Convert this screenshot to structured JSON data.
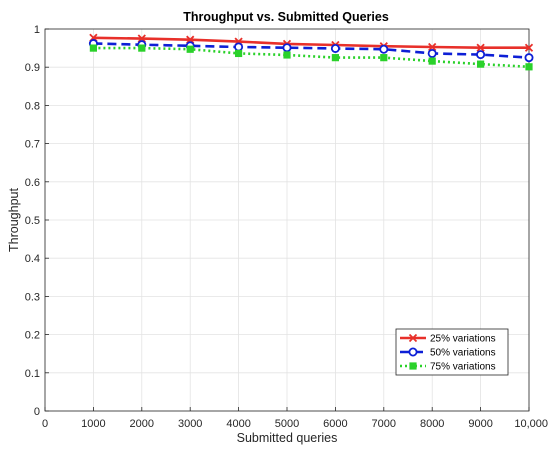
{
  "chart_data": {
    "type": "line",
    "title": "Throughput vs. Submitted Queries",
    "xlabel": "Submitted queries",
    "ylabel": "Throughput",
    "x": [
      1000,
      2000,
      3000,
      4000,
      5000,
      6000,
      7000,
      8000,
      9000,
      10000
    ],
    "xlim": [
      0,
      10000
    ],
    "ylim": [
      0,
      1
    ],
    "xticks": [
      0,
      1000,
      2000,
      3000,
      4000,
      5000,
      6000,
      7000,
      8000,
      9000,
      10000
    ],
    "xtick_labels": [
      "0",
      "1000",
      "2000",
      "3000",
      "4000",
      "5000",
      "6000",
      "7000",
      "8000",
      "9000",
      "10,000"
    ],
    "yticks": [
      0,
      0.1,
      0.2,
      0.3,
      0.4,
      0.5,
      0.6,
      0.7,
      0.8,
      0.9,
      1
    ],
    "ytick_labels": [
      "0",
      "0.1",
      "0.2",
      "0.3",
      "0.4",
      "0.5",
      "0.6",
      "0.7",
      "0.8",
      "0.9",
      "1"
    ],
    "grid": true,
    "legend_position": "bottom-right",
    "series": [
      {
        "name": "25% variations",
        "values": [
          0.977,
          0.975,
          0.972,
          0.967,
          0.961,
          0.958,
          0.955,
          0.953,
          0.951,
          0.951
        ],
        "color": "#e8302a",
        "line_style": "solid",
        "marker": "x"
      },
      {
        "name": "50% variations",
        "values": [
          0.962,
          0.959,
          0.956,
          0.953,
          0.951,
          0.949,
          0.947,
          0.936,
          0.933,
          0.925
        ],
        "color": "#0d1fd6",
        "line_style": "dashed",
        "marker": "circle"
      },
      {
        "name": "75% variations",
        "values": [
          0.95,
          0.95,
          0.947,
          0.936,
          0.932,
          0.925,
          0.925,
          0.916,
          0.908,
          0.901
        ],
        "color": "#2ad12a",
        "line_style": "dotted",
        "marker": "square"
      }
    ]
  }
}
